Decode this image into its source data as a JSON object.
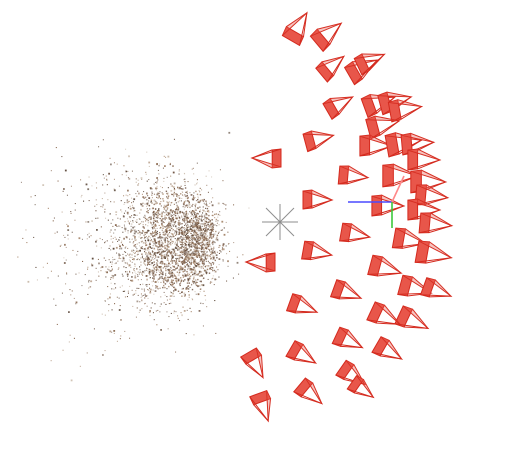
{
  "viewer": {
    "description_free": true
  },
  "point_cloud": {
    "colors": [
      "#8a6a52",
      "#6e5443",
      "#a8896f",
      "#5b4738",
      "#c7b7a6"
    ],
    "density": "dense"
  },
  "cameras": {
    "stroke_color": "#d42a1e",
    "fill_color": "#e8564a",
    "count": 58
  },
  "pivot_marker": {
    "icon": "asterisk-crosshair-icon",
    "color": "#8d8d8d"
  },
  "axes_gizmo": {
    "x_color": "#4a4aff",
    "y_color": "#3cc83c",
    "z_color": "#ff8888"
  }
}
